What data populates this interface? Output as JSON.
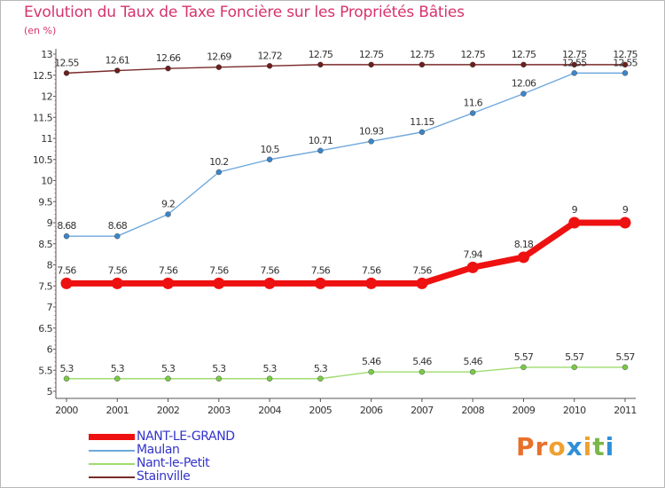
{
  "header": {
    "title": "Evolution du Taux de Taxe Foncière sur les Propriétés Bâties",
    "unit": "(en %)"
  },
  "logo": {
    "text": "Proxiti",
    "letter_colors": [
      "#e8702a",
      "#e8702a",
      "#f0a030",
      "#2f8fd8",
      "#f0a030",
      "#7ab648",
      "#2f8fd8"
    ]
  },
  "chart_data": {
    "type": "line",
    "x": [
      "2000",
      "2001",
      "2002",
      "2003",
      "2004",
      "2005",
      "2006",
      "2007",
      "2008",
      "2009",
      "2010",
      "2011"
    ],
    "ylim": [
      5,
      13
    ],
    "yticks": [
      "5",
      "5.5",
      "6",
      "6.5",
      "7",
      "7.5",
      "8",
      "8.5",
      "9",
      "9.5",
      "10",
      "10.5",
      "11",
      "11.5",
      "12",
      "12.5",
      "13"
    ],
    "grid": false,
    "legend_position": "bottom-left",
    "series": [
      {
        "name": "Stainville",
        "color": "#7a2a2a",
        "marker_color": "#6b1f1f",
        "values": [
          12.55,
          12.61,
          12.66,
          12.69,
          12.72,
          12.75,
          12.75,
          12.75,
          12.75,
          12.75,
          12.75,
          12.75
        ],
        "labels": [
          "12.55",
          "12.61",
          "12.66",
          "12.69",
          "12.72",
          "12.75",
          "12.75",
          "12.75",
          "12.75",
          "12.75",
          "12.75",
          "12.75"
        ],
        "highlight": false
      },
      {
        "name": "Maulan",
        "color": "#6fa8dc",
        "marker_color": "#3d85c6",
        "values": [
          8.68,
          8.68,
          9.2,
          10.2,
          10.5,
          10.71,
          10.93,
          11.15,
          11.6,
          12.06,
          12.55,
          12.55
        ],
        "labels": [
          "8.68",
          "8.68",
          "9.2",
          "10.2",
          "10.5",
          "10.71",
          "10.93",
          "11.15",
          "11.6",
          "12.06",
          "12.55",
          "12.55"
        ],
        "highlight": false
      },
      {
        "name": "NANT-LE-GRAND",
        "color": "#ee1111",
        "marker_color": "#ee1111",
        "values": [
          7.56,
          7.56,
          7.56,
          7.56,
          7.56,
          7.56,
          7.56,
          7.56,
          7.94,
          8.18,
          9,
          9
        ],
        "labels": [
          "7.56",
          "7.56",
          "7.56",
          "7.56",
          "7.56",
          "7.56",
          "7.56",
          "7.56",
          "7.94",
          "8.18",
          "9",
          "9"
        ],
        "highlight": true
      },
      {
        "name": "Nant-le-Petit",
        "color": "#9fdc6f",
        "marker_color": "#7ac94a",
        "values": [
          5.3,
          5.3,
          5.3,
          5.3,
          5.3,
          5.3,
          5.46,
          5.46,
          5.46,
          5.57,
          5.57,
          5.57
        ],
        "labels": [
          "5.3",
          "5.3",
          "5.3",
          "5.3",
          "5.3",
          "5.3",
          "5.46",
          "5.46",
          "5.46",
          "5.57",
          "5.57",
          "5.57"
        ],
        "highlight": false
      }
    ],
    "legend_order": [
      "NANT-LE-GRAND",
      "Maulan",
      "Nant-le-Petit",
      "Stainville"
    ]
  }
}
